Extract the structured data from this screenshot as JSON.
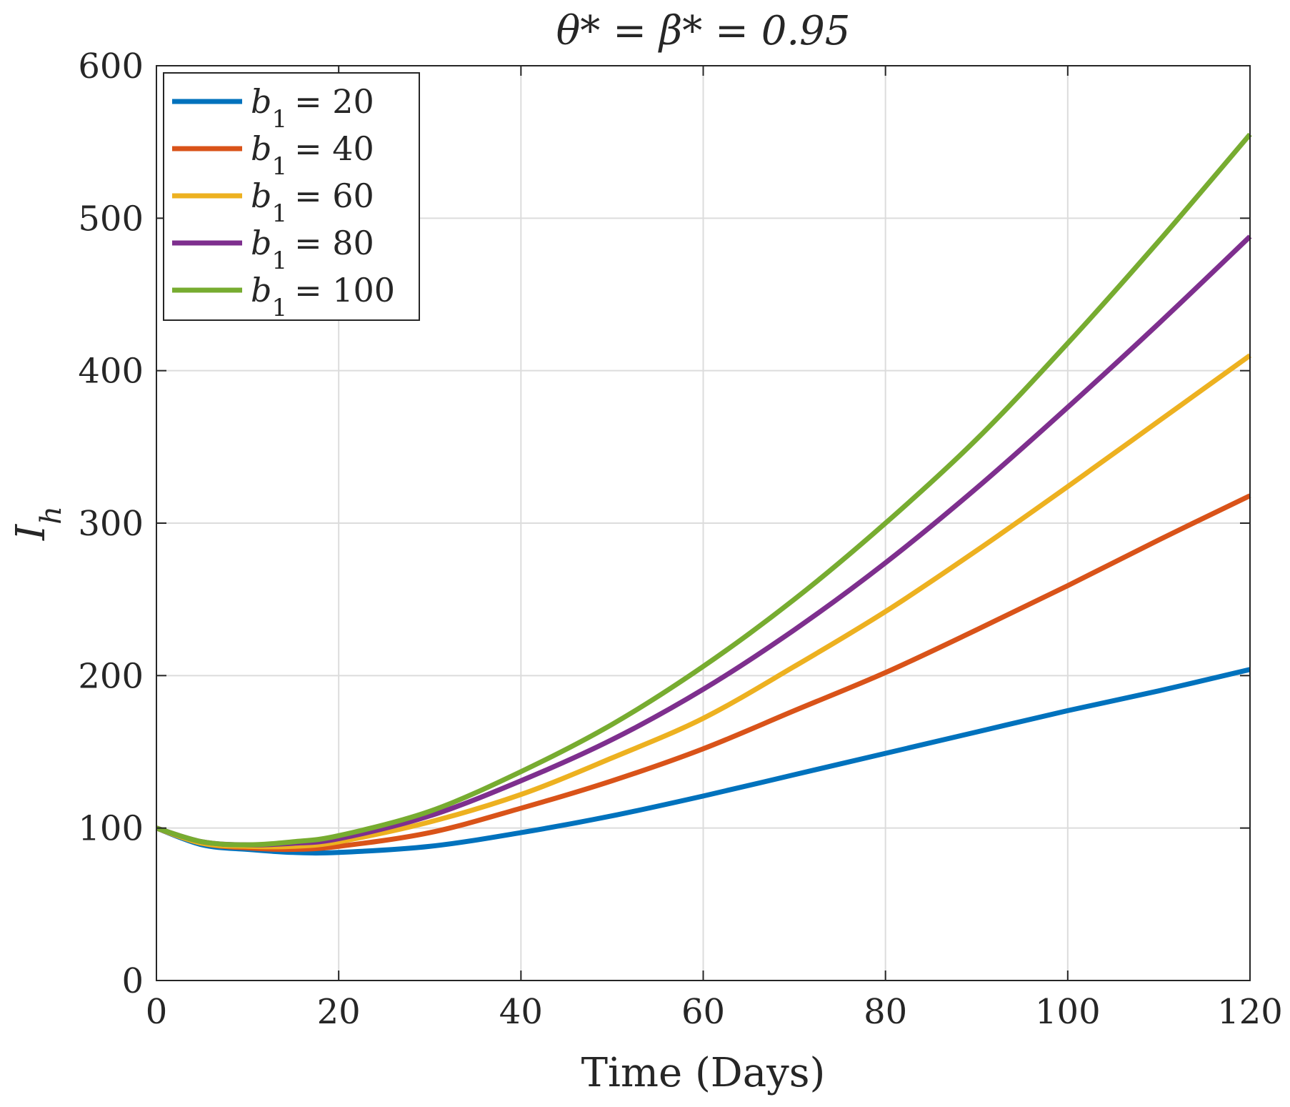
{
  "chart_data": {
    "type": "line",
    "title": "θ* = β* = 0.95",
    "xlabel": "Time (Days)",
    "ylabel": "I_h",
    "xlim": [
      0,
      120
    ],
    "ylim": [
      0,
      600
    ],
    "xticks": [
      0,
      20,
      40,
      60,
      80,
      100,
      120
    ],
    "yticks": [
      0,
      100,
      200,
      300,
      400,
      500,
      600
    ],
    "grid": true,
    "legend_position": "top-left",
    "x": [
      0,
      5,
      10,
      15,
      20,
      30,
      40,
      50,
      60,
      70,
      80,
      90,
      100,
      110,
      120
    ],
    "series": [
      {
        "name": "b_1 = 20",
        "legend_var": "b",
        "legend_sub": "1",
        "legend_value": "= 20",
        "color": "#0072BD",
        "values": [
          100,
          89,
          86,
          84,
          84,
          88,
          97,
          108,
          121,
          135,
          149,
          163,
          177,
          190,
          204
        ]
      },
      {
        "name": "b_1 = 40",
        "legend_var": "b",
        "legend_sub": "1",
        "legend_value": "= 40",
        "color": "#D95319",
        "values": [
          100,
          90,
          87,
          86,
          88,
          97,
          113,
          131,
          152,
          177,
          202,
          230,
          259,
          289,
          318
        ]
      },
      {
        "name": "b_1 = 60",
        "legend_var": "b",
        "legend_sub": "1",
        "legend_value": "= 60",
        "color": "#EDB120",
        "values": [
          100,
          90,
          88,
          88,
          91,
          104,
          122,
          146,
          172,
          206,
          242,
          282,
          324,
          367,
          410
        ]
      },
      {
        "name": "b_1 = 80",
        "legend_var": "b",
        "legend_sub": "1",
        "legend_value": "= 80",
        "color": "#7E2F8E",
        "values": [
          100,
          91,
          89,
          90,
          93,
          108,
          131,
          158,
          191,
          230,
          274,
          323,
          376,
          431,
          488
        ]
      },
      {
        "name": "b_1 = 100",
        "legend_var": "b",
        "legend_sub": "1",
        "legend_value": "= 100",
        "color": "#77AC30",
        "values": [
          100,
          91,
          89,
          91,
          95,
          111,
          137,
          168,
          206,
          250,
          300,
          355,
          418,
          485,
          555
        ]
      }
    ]
  }
}
